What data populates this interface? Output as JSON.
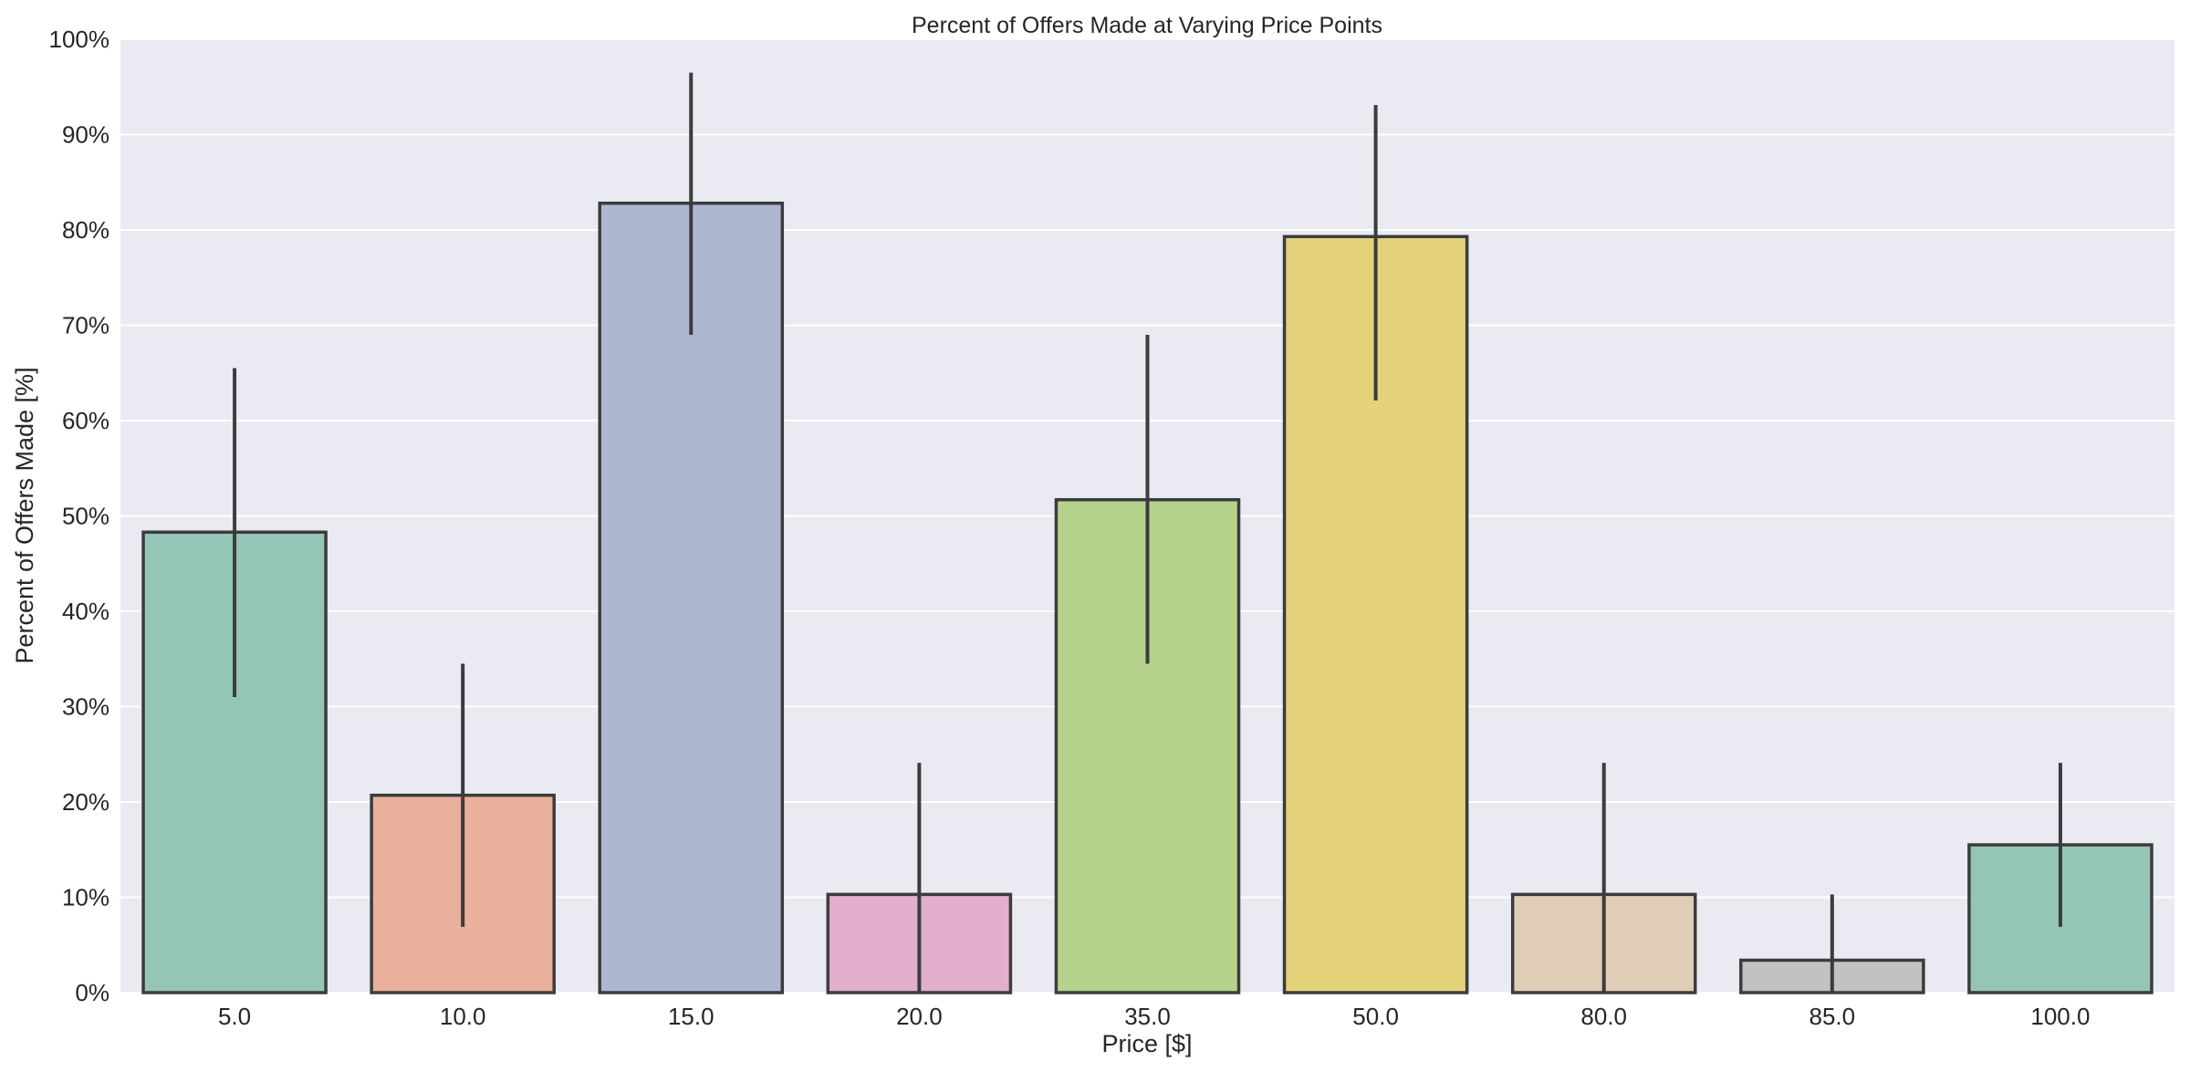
{
  "chart_data": {
    "type": "bar",
    "title": "Percent of Offers Made at Varying Price Points",
    "xlabel": "Price [$]",
    "ylabel": "Percent of Offers Made [%]",
    "categories": [
      "5.0",
      "10.0",
      "15.0",
      "20.0",
      "35.0",
      "50.0",
      "80.0",
      "85.0",
      "100.0"
    ],
    "values": [
      48.3,
      20.7,
      82.8,
      10.3,
      51.7,
      79.3,
      10.3,
      3.4,
      15.5
    ],
    "error_low": [
      31.0,
      6.9,
      69.0,
      0.0,
      34.5,
      62.1,
      0.0,
      0.0,
      6.9
    ],
    "error_high": [
      65.5,
      34.5,
      96.5,
      24.1,
      69.0,
      93.1,
      24.1,
      10.3,
      24.1
    ],
    "bar_colors": [
      "#95c5b7",
      "#e9b09b",
      "#adb7d2",
      "#e2afcc",
      "#b6d38e",
      "#e4d27b",
      "#dfcdb6",
      "#c2c2c2",
      "#95c5b7"
    ],
    "edge_color": "#3c3c3c",
    "errorbar_color": "#3c3c3c",
    "background_color": "#eaeaf2",
    "gridline_color": "#ffffff",
    "ylim": [
      0,
      100
    ],
    "yticks": [
      0,
      10,
      20,
      30,
      40,
      50,
      60,
      70,
      80,
      90,
      100
    ],
    "ytick_labels": [
      "0%",
      "10%",
      "20%",
      "30%",
      "40%",
      "50%",
      "60%",
      "70%",
      "80%",
      "90%",
      "100%"
    ],
    "grid": true,
    "grid_axis": "y",
    "legend": false
  }
}
